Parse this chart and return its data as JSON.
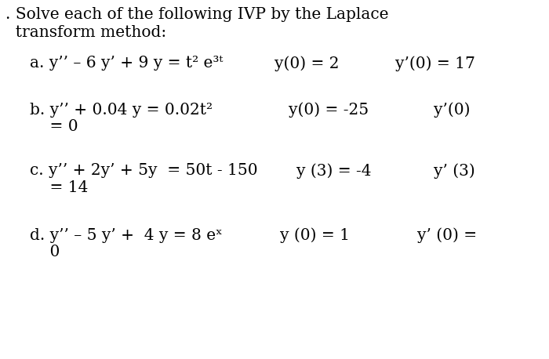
{
  "background_color": "#ffffff",
  "text_color": "#000000",
  "font_size_main": 14.5,
  "title_line1": ". Solve each of the following IVP by the Laplace",
  "title_line2": "  transform method:",
  "row_a_eq": "a. y’’ – 6 y’ + 9 y = t² e³ᵗ",
  "row_a_ic1": "y(0) = 2",
  "row_a_ic2": "y’(0) = 17",
  "row_b_eq": "b. y’’ + 0.04 y = 0.02t²",
  "row_b_eq2": "    = 0",
  "row_b_ic1": "y(0) = -25",
  "row_b_ic2": "y’(0)",
  "row_c_eq": "c. y’’ + 2y’ + 5y  = 50t - 150",
  "row_c_eq2": "    = 14",
  "row_c_ic1": "y (3) = -4",
  "row_c_ic2": "y’ (3)",
  "row_d_eq": "d. y’’ – 5 y’ +  4 y = 8 eˣ",
  "row_d_eq2": "    0",
  "row_d_ic1": "y (0) = 1",
  "row_d_ic2": "y’ (0) ="
}
